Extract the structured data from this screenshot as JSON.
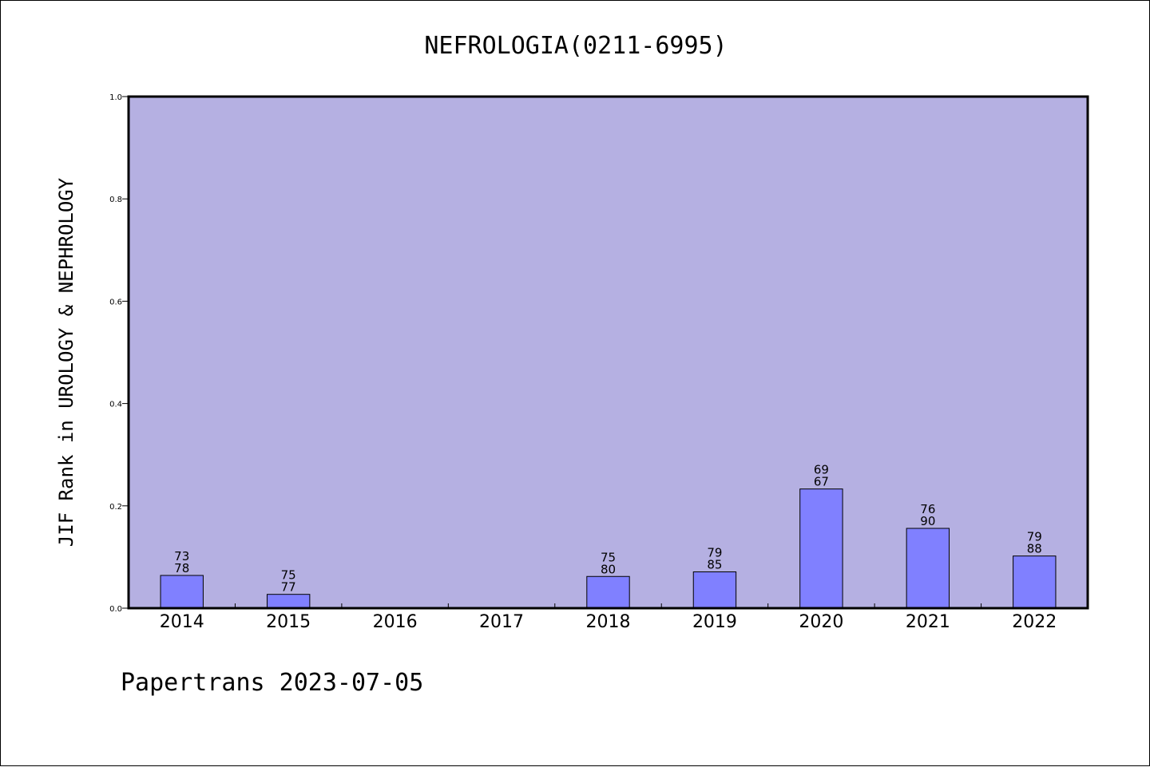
{
  "chart_data": {
    "type": "bar",
    "title": "NEFROLOGIA(0211-6995)",
    "ylabel": "JIF Rank in UROLOGY & NEPHROLOGY",
    "xlabel": "",
    "ylim": [
      0,
      1.0
    ],
    "yticks": [
      "0.0",
      "0.2",
      "0.4",
      "0.6",
      "0.8",
      "1.0"
    ],
    "categories": [
      "2014",
      "2015",
      "2016",
      "2017",
      "2018",
      "2019",
      "2020",
      "2021",
      "2022"
    ],
    "values": [
      0.064,
      0.027,
      null,
      null,
      0.062,
      0.071,
      0.233,
      0.156,
      0.102
    ],
    "labels_top": [
      "73",
      "75",
      "",
      "",
      "75",
      "79",
      "69",
      "76",
      "79"
    ],
    "labels_bottom": [
      "78",
      "77",
      "",
      "",
      "80",
      "85",
      "67",
      "90",
      "88"
    ],
    "grid": false,
    "colors": {
      "plot_bg": "#b5b0e2",
      "bar": "#8080ff",
      "bar_edge": "#000000"
    }
  },
  "footer": "Papertrans 2023-07-05"
}
